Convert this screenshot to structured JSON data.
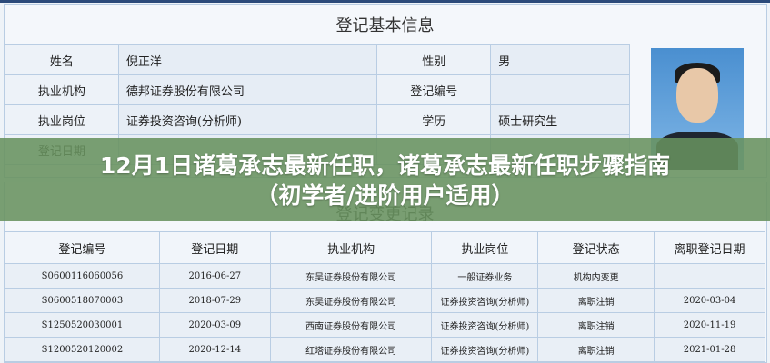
{
  "basic": {
    "title": "登记基本信息",
    "rows": [
      {
        "l1": "姓名",
        "v1": "倪正洋",
        "l2": "性别",
        "v2": "男"
      },
      {
        "l1": "执业机构",
        "v1": "德邦证券股份有限公司",
        "l2": "登记编号",
        "v2": ""
      },
      {
        "l1": "执业岗位",
        "v1": "证券投资咨询(分析师)",
        "l2": "学历",
        "v2": "硕士研究生"
      },
      {
        "l1": "登记日期",
        "v1": "",
        "l2": "",
        "v2": ""
      }
    ]
  },
  "changes": {
    "title": "登记变更记录",
    "headers": [
      "登记编号",
      "登记日期",
      "执业机构",
      "执业岗位",
      "登记状态",
      "离职登记日期"
    ],
    "rows": [
      [
        "S0600116060056",
        "2016-06-27",
        "东吴证券股份有限公司",
        "一般证券业务",
        "机构内变更",
        ""
      ],
      [
        "S0600518070003",
        "2018-07-29",
        "东吴证券股份有限公司",
        "证券投资咨询(分析师)",
        "离职注销",
        "2020-03-04"
      ],
      [
        "S1250520030001",
        "2020-03-09",
        "西南证券股份有限公司",
        "证券投资咨询(分析师)",
        "离职注销",
        "2020-11-19"
      ],
      [
        "S1200520120002",
        "2020-12-14",
        "红塔证券股份有限公司",
        "证券投资咨询(分析师)",
        "离职注销",
        "2021-01-28"
      ]
    ]
  },
  "banner": {
    "line1": "12月1日诸葛承志最新任职，诸葛承志最新任职步骤指南",
    "line2": "（初学者/进阶用户适用）"
  }
}
